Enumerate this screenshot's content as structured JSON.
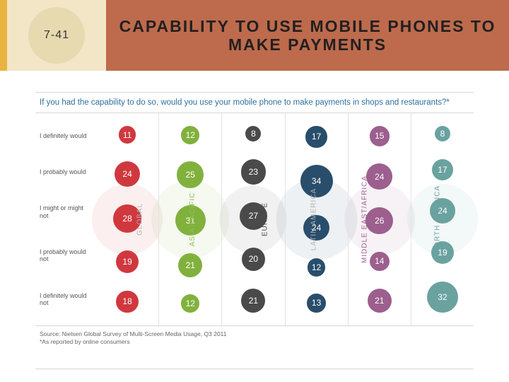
{
  "slide_number": "7-41",
  "title": "CAPABILITY TO USE MOBILE PHONES TO MAKE PAYMENTS",
  "question": "If you had the capability to do so, would you use your mobile phone to make payments in shops and restaurants?*",
  "row_labels": [
    "I definitely would",
    "I probably would",
    "I might or might not",
    "I probably would not",
    "I definitely would not"
  ],
  "source_line1": "Source: Nielsen Global Survey of Multi-Screen Media Usage, Q3 2011",
  "source_line2": "*As reported by online consumers",
  "bubble_size_min": 22,
  "bubble_size_max": 46,
  "regions": [
    {
      "name": "GLOBAL",
      "color": "#d0383f",
      "values": [
        11,
        24,
        28,
        19,
        18
      ],
      "vlabel_color": "#b0b0b0",
      "watermark_d": 100
    },
    {
      "name": "ASIA-PACIFIC",
      "color": "#81b13d",
      "values": [
        12,
        25,
        31,
        21,
        12
      ],
      "vlabel_color": "#8fbf57",
      "watermark_d": 110
    },
    {
      "name": "EUROPE",
      "color": "#4a4a4a",
      "values": [
        8,
        23,
        27,
        20,
        21
      ],
      "vlabel_color": "#4a4a4a",
      "watermark_d": 95
    },
    {
      "name": "LATIN AMERICA",
      "color": "#294e6b",
      "values": [
        17,
        34,
        24,
        12,
        13
      ],
      "vlabel_color": "#b0b0b0",
      "watermark_d": 115
    },
    {
      "name": "MIDDLE EAST/AFRICA",
      "color": "#9c5f8e",
      "values": [
        15,
        24,
        26,
        14,
        21
      ],
      "vlabel_color": "#9c5f8e",
      "watermark_d": 100
    },
    {
      "name": "NORTH AMERICA",
      "color": "#6aa2a0",
      "values": [
        8,
        17,
        24,
        19,
        32
      ],
      "vlabel_color": "#6aa2a0",
      "watermark_d": 100
    }
  ],
  "colors": {
    "accent_gold": "#e9b340",
    "panel_cream": "#f3e6c7",
    "circle_cream": "#e7d9b0",
    "title_bg": "#bd6b4c",
    "question_color": "#2f6fa0",
    "divider": "#d7d7d7",
    "text": "#333333"
  }
}
